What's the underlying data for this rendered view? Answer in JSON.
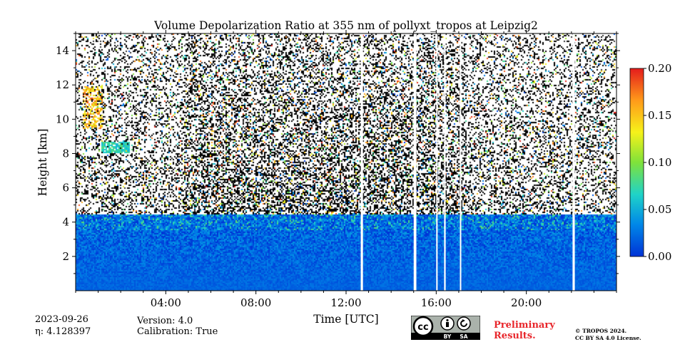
{
  "chart_data": {
    "type": "heatmap",
    "title": "Volume Depolarization Ratio at 355 nm of pollyxt_tropos at Leipzig2",
    "xlabel": "Time [UTC]",
    "ylabel": "Height [km]",
    "xlim": [
      0,
      24
    ],
    "ylim": [
      0,
      15
    ],
    "x_ticks": [
      {
        "value": 4,
        "label": "04:00"
      },
      {
        "value": 8,
        "label": "08:00"
      },
      {
        "value": 12,
        "label": "12:00"
      },
      {
        "value": 16,
        "label": "16:00"
      },
      {
        "value": 20,
        "label": "20:00"
      }
    ],
    "y_ticks": [
      {
        "value": 2,
        "label": "2"
      },
      {
        "value": 4,
        "label": "4"
      },
      {
        "value": 6,
        "label": "6"
      },
      {
        "value": 8,
        "label": "8"
      },
      {
        "value": 10,
        "label": "10"
      },
      {
        "value": 12,
        "label": "12"
      },
      {
        "value": 14,
        "label": "14"
      }
    ],
    "colorbar": {
      "range": [
        0.0,
        0.2
      ],
      "ticks": [
        {
          "value": 0.0,
          "label": "0.00"
        },
        {
          "value": 0.05,
          "label": "0.05"
        },
        {
          "value": 0.1,
          "label": "0.10"
        },
        {
          "value": 0.15,
          "label": "0.15"
        },
        {
          "value": 0.2,
          "label": "0.20"
        }
      ],
      "colormap": "jet"
    },
    "data_gaps_utc": [
      {
        "start": 12.65,
        "end": 12.75
      },
      {
        "start": 15.0,
        "end": 15.12
      },
      {
        "start": 16.0,
        "end": 16.05
      },
      {
        "start": 16.35,
        "end": 16.42
      },
      {
        "start": 17.05,
        "end": 17.1
      },
      {
        "start": 22.05,
        "end": 22.15
      }
    ],
    "features": [
      {
        "name": "boundary layer",
        "time_start": 0,
        "time_end": 24,
        "height_top_km": 4.5,
        "depol_approx": 0.02
      },
      {
        "name": "aerosol layer",
        "time_start": 1.1,
        "time_end": 2.4,
        "height_km": 8.4,
        "depol_approx": 0.07
      },
      {
        "name": "cirrus",
        "time_start": 0.3,
        "time_end": 1.2,
        "height_range_km": [
          9.5,
          12
        ],
        "depol_approx": 0.15
      }
    ]
  },
  "footer": {
    "date": "2023-09-26",
    "eta": "η: 4.128397",
    "version": "Version: 4.0",
    "calibration": "Calibration: True",
    "cc_label": "cc",
    "by_label": "BY",
    "sa_label": "SA",
    "preliminary_line1": "Preliminary",
    "preliminary_line2": "Results.",
    "copyright": "© TROPOS 2024.",
    "license": "CC BY SA 4.0 License."
  },
  "colors": {
    "preliminary": "#e8262b",
    "axis": "#000000"
  }
}
